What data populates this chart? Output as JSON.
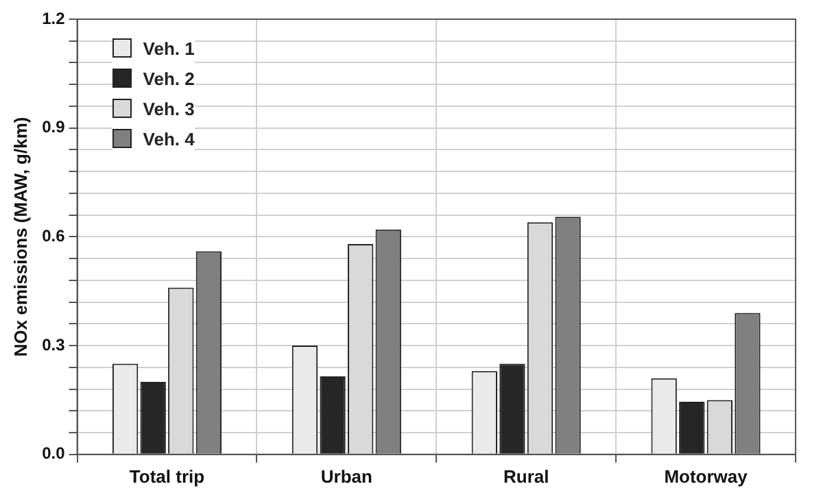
{
  "chart_data": {
    "type": "bar",
    "ylabel": "NOx emissions (MAW, g/km)",
    "categories": [
      "Total trip",
      "Urban",
      "Rural",
      "Motorway"
    ],
    "series": [
      {
        "name": "Veh. 1",
        "color": "#eaeaea",
        "values": [
          0.25,
          0.3,
          0.23,
          0.21
        ]
      },
      {
        "name": "Veh. 2",
        "color": "#262626",
        "values": [
          0.2,
          0.215,
          0.25,
          0.145
        ]
      },
      {
        "name": "Veh. 3",
        "color": "#d9d9d9",
        "values": [
          0.46,
          0.58,
          0.64,
          0.15
        ]
      },
      {
        "name": "Veh. 4",
        "color": "#808080",
        "values": [
          0.56,
          0.62,
          0.655,
          0.39
        ]
      }
    ],
    "ylim": [
      0,
      1.2
    ],
    "yticks": [
      {
        "value": 0,
        "label": "0.0"
      },
      {
        "value": 0.06,
        "label": null
      },
      {
        "value": 0.12,
        "label": null
      },
      {
        "value": 0.18,
        "label": null
      },
      {
        "value": 0.24,
        "label": null
      },
      {
        "value": 0.3,
        "label": "0.3"
      },
      {
        "value": 0.36,
        "label": null
      },
      {
        "value": 0.42,
        "label": null
      },
      {
        "value": 0.48,
        "label": null
      },
      {
        "value": 0.54,
        "label": null
      },
      {
        "value": 0.6,
        "label": "0.6"
      },
      {
        "value": 0.66,
        "label": null
      },
      {
        "value": 0.72,
        "label": null
      },
      {
        "value": 0.78,
        "label": null
      },
      {
        "value": 0.84,
        "label": null
      },
      {
        "value": 0.9,
        "label": "0.9"
      },
      {
        "value": 0.96,
        "label": null
      },
      {
        "value": 1.02,
        "label": null
      },
      {
        "value": 1.08,
        "label": null
      },
      {
        "value": 1.14,
        "label": null
      },
      {
        "value": 1.2,
        "label": "1.2"
      }
    ],
    "grid": true,
    "legend": "top left"
  }
}
